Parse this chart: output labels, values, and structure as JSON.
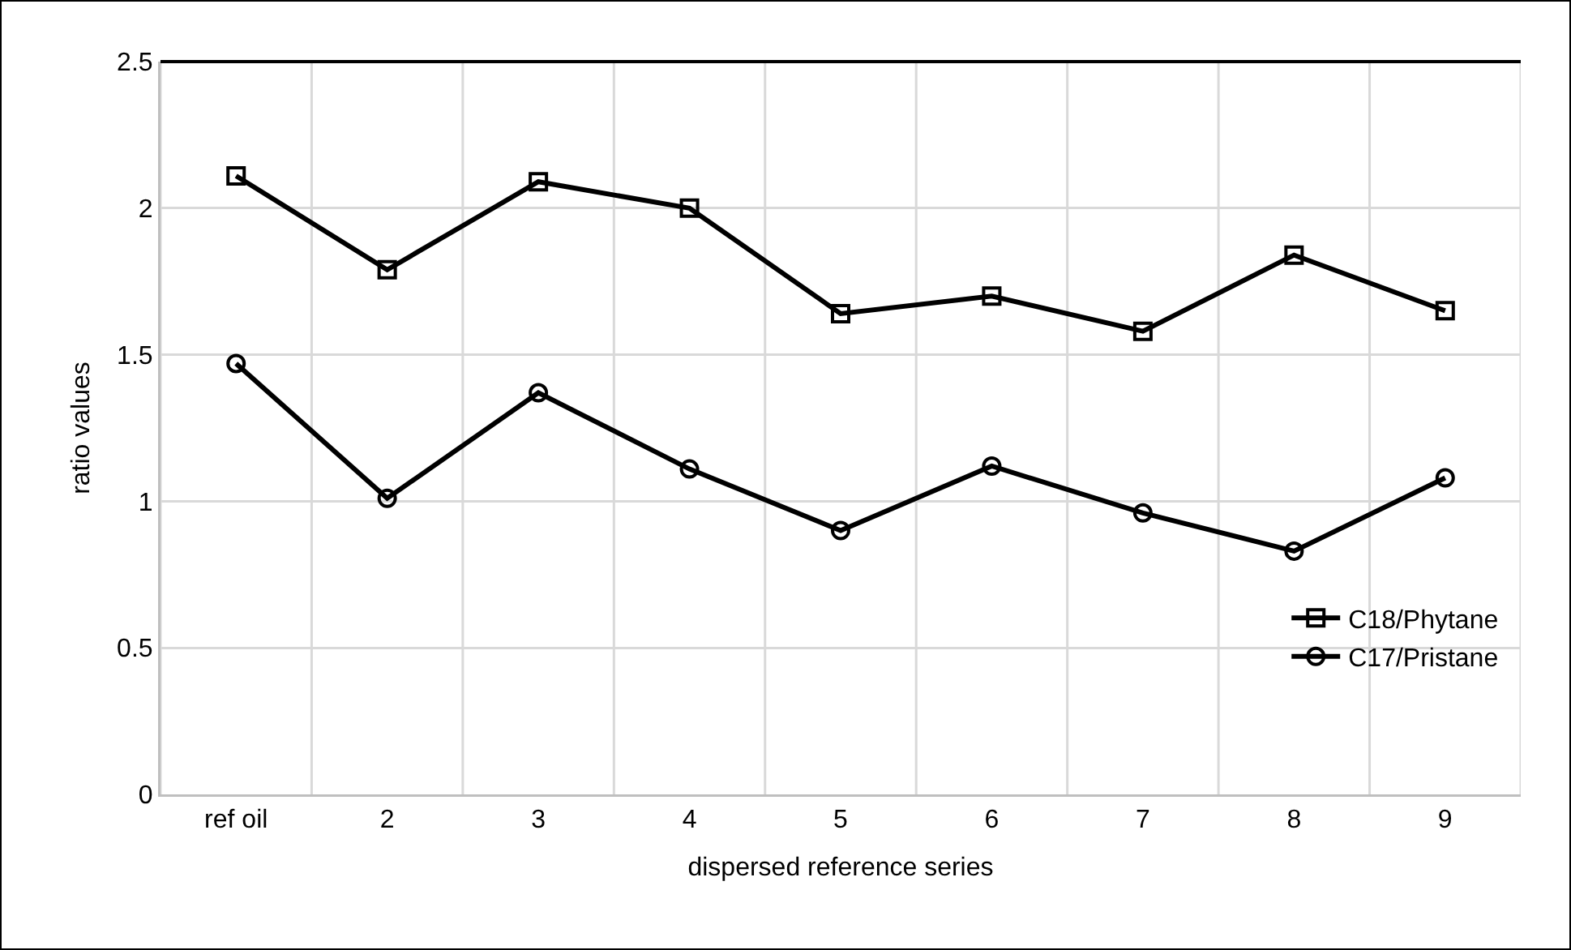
{
  "chart_data": {
    "type": "line",
    "xlabel": "dispersed reference series",
    "ylabel": "ratio values",
    "categories": [
      "ref oil",
      "2",
      "3",
      "4",
      "5",
      "6",
      "7",
      "8",
      "9"
    ],
    "series": [
      {
        "name": "C18/Phytane",
        "color": "#000000",
        "marker": "square",
        "values": [
          2.11,
          1.79,
          2.09,
          2.0,
          1.64,
          1.7,
          1.58,
          1.84,
          1.65
        ]
      },
      {
        "name": "C17/Pristane",
        "color": "#000000",
        "marker": "circle",
        "values": [
          1.47,
          1.01,
          1.37,
          1.11,
          0.9,
          1.12,
          0.96,
          0.83,
          1.08
        ]
      }
    ],
    "ylim": [
      0,
      2.5
    ],
    "yticks": [
      0,
      0.5,
      1,
      1.5,
      2,
      2.5
    ],
    "grid": true,
    "legend": "bottom right",
    "line_style": "solid"
  }
}
